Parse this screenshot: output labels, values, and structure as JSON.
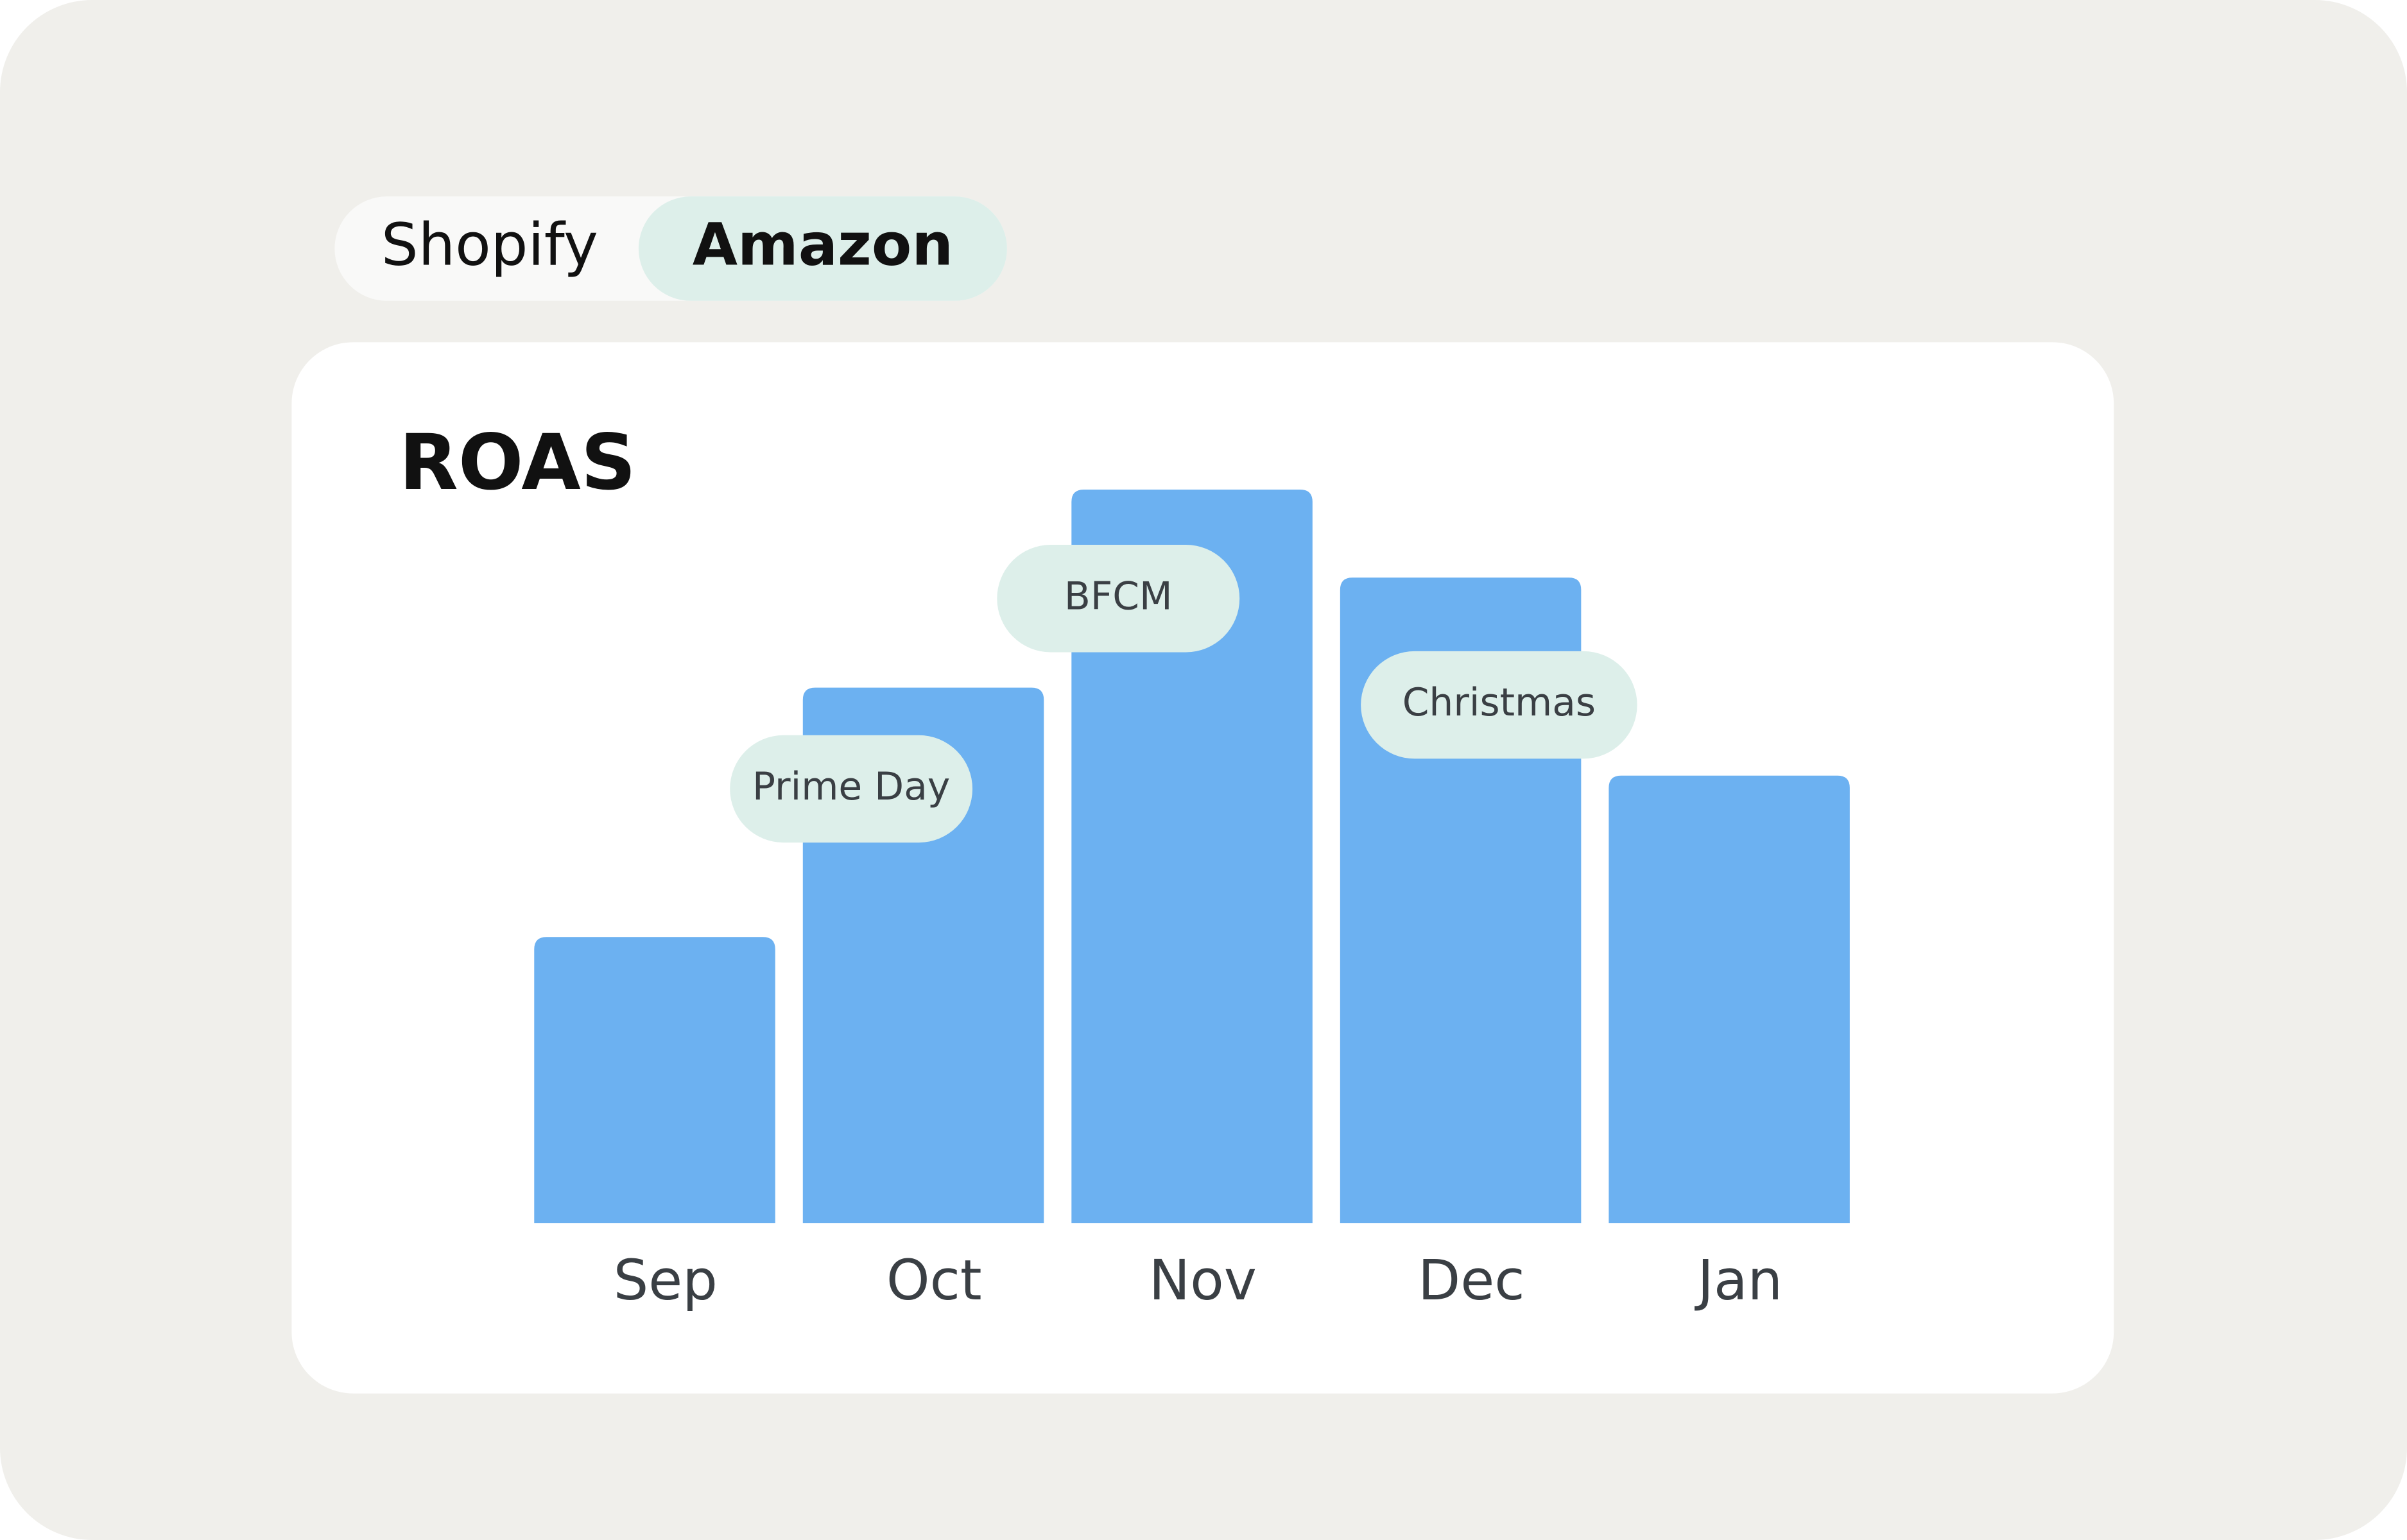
{
  "tabs": [
    "Shopify",
    "Amazon"
  ],
  "active_tab": "Amazon",
  "chart_data": {
    "type": "bar",
    "title": "ROAS",
    "categories": [
      "Sep",
      "Oct",
      "Nov",
      "Dec",
      "Jan"
    ],
    "values": [
      39,
      73,
      100,
      88,
      61
    ],
    "color": "#6cb1f1",
    "annotations": [
      {
        "label": "Prime Day",
        "category": "Oct"
      },
      {
        "label": "BFCM",
        "category": "Nov"
      },
      {
        "label": "Christmas",
        "category": "Dec"
      }
    ]
  }
}
